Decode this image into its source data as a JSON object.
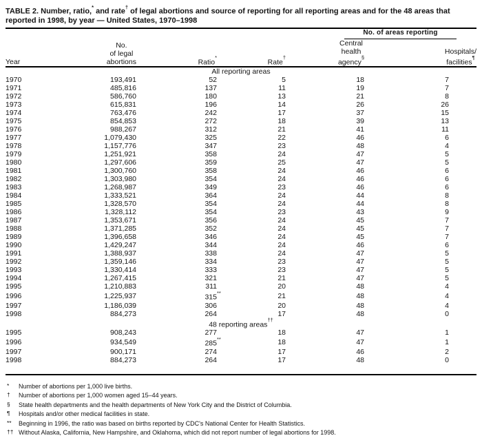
{
  "title_parts": {
    "p1": "TABLE 2. Number, ratio,",
    "sup1": "*",
    "p2": " and rate",
    "sup2": "†",
    "p3": " of legal abortions and source of reporting for all reporting areas and for the 48 areas that reported in 1998, by year — United States, 1970–1998"
  },
  "header": {
    "spanner": "No. of areas reporting",
    "year": "Year",
    "abortions_line1": "No.",
    "abortions_line2": "of legal",
    "abortions_line3": "abortions",
    "ratio_label": "Ratio",
    "ratio_marker": "*",
    "rate_label": "Rate",
    "rate_marker": "†",
    "central_line1": "Central",
    "central_line2": "health",
    "central_line3": "agency",
    "central_marker": "§",
    "hospitals_line1": "Hospitals/",
    "hospitals_line2": "facilities",
    "hospitals_marker": "¶"
  },
  "sections": [
    {
      "label": "All reporting areas",
      "label_sup": "",
      "rows": [
        [
          "1970",
          "193,491",
          "52",
          "",
          "5",
          "18",
          "7"
        ],
        [
          "1971",
          "485,816",
          "137",
          "",
          "11",
          "19",
          "7"
        ],
        [
          "1972",
          "586,760",
          "180",
          "",
          "13",
          "21",
          "8"
        ],
        [
          "1973",
          "615,831",
          "196",
          "",
          "14",
          "26",
          "26"
        ],
        [
          "1974",
          "763,476",
          "242",
          "",
          "17",
          "37",
          "15"
        ],
        [
          "1975",
          "854,853",
          "272",
          "",
          "18",
          "39",
          "13"
        ],
        [
          "1976",
          "988,267",
          "312",
          "",
          "21",
          "41",
          "11"
        ],
        [
          "1977",
          "1,079,430",
          "325",
          "",
          "22",
          "46",
          "6"
        ],
        [
          "1978",
          "1,157,776",
          "347",
          "",
          "23",
          "48",
          "4"
        ],
        [
          "1979",
          "1,251,921",
          "358",
          "",
          "24",
          "47",
          "5"
        ],
        [
          "1980",
          "1,297,606",
          "359",
          "",
          "25",
          "47",
          "5"
        ],
        [
          "1981",
          "1,300,760",
          "358",
          "",
          "24",
          "46",
          "6"
        ],
        [
          "1982",
          "1,303,980",
          "354",
          "",
          "24",
          "46",
          "6"
        ],
        [
          "1983",
          "1,268,987",
          "349",
          "",
          "23",
          "46",
          "6"
        ],
        [
          "1984",
          "1,333,521",
          "364",
          "",
          "24",
          "44",
          "8"
        ],
        [
          "1985",
          "1,328,570",
          "354",
          "",
          "24",
          "44",
          "8"
        ],
        [
          "1986",
          "1,328,112",
          "354",
          "",
          "23",
          "43",
          "9"
        ],
        [
          "1987",
          "1,353,671",
          "356",
          "",
          "24",
          "45",
          "7"
        ],
        [
          "1988",
          "1,371,285",
          "352",
          "",
          "24",
          "45",
          "7"
        ],
        [
          "1989",
          "1,396,658",
          "346",
          "",
          "24",
          "45",
          "7"
        ],
        [
          "1990",
          "1,429,247",
          "344",
          "",
          "24",
          "46",
          "6"
        ],
        [
          "1991",
          "1,388,937",
          "338",
          "",
          "24",
          "47",
          "5"
        ],
        [
          "1992",
          "1,359,146",
          "334",
          "",
          "23",
          "47",
          "5"
        ],
        [
          "1993",
          "1,330,414",
          "333",
          "",
          "23",
          "47",
          "5"
        ],
        [
          "1994",
          "1,267,415",
          "321",
          "",
          "21",
          "47",
          "5"
        ],
        [
          "1995",
          "1,210,883",
          "311",
          "",
          "20",
          "48",
          "4"
        ],
        [
          "1996",
          "1,225,937",
          "315",
          "**",
          "21",
          "48",
          "4"
        ],
        [
          "1997",
          "1,186,039",
          "306",
          "",
          "20",
          "48",
          "4"
        ],
        [
          "1998",
          "884,273",
          "264",
          "",
          "17",
          "48",
          "0"
        ]
      ]
    },
    {
      "label": "48 reporting areas",
      "label_sup": "††",
      "rows": [
        [
          "1995",
          "908,243",
          "277",
          "",
          "18",
          "47",
          "1"
        ],
        [
          "1996",
          "934,549",
          "285",
          "**",
          "18",
          "47",
          "1"
        ],
        [
          "1997",
          "900,171",
          "274",
          "",
          "17",
          "46",
          "2"
        ],
        [
          "1998",
          "884,273",
          "264",
          "",
          "17",
          "48",
          "0"
        ]
      ]
    }
  ],
  "footnotes": [
    {
      "marker": "*",
      "text": "Number of abortions per 1,000 live births."
    },
    {
      "marker": "†",
      "text": "Number of abortions per 1,000 women aged 15–44 years."
    },
    {
      "marker": "§",
      "text": "State health departments and the health departments of New York City and the District of Columbia."
    },
    {
      "marker": "¶",
      "text": "Hospitals and/or other medical facilities in state."
    },
    {
      "marker": "**",
      "text": "Beginning in 1996, the ratio was based on births reported by CDC's National Center for Health Statistics."
    },
    {
      "marker": "††",
      "text": "Without Alaska, California, New Hampshire, and Oklahoma, which did not report number of legal abortions for 1998."
    }
  ]
}
